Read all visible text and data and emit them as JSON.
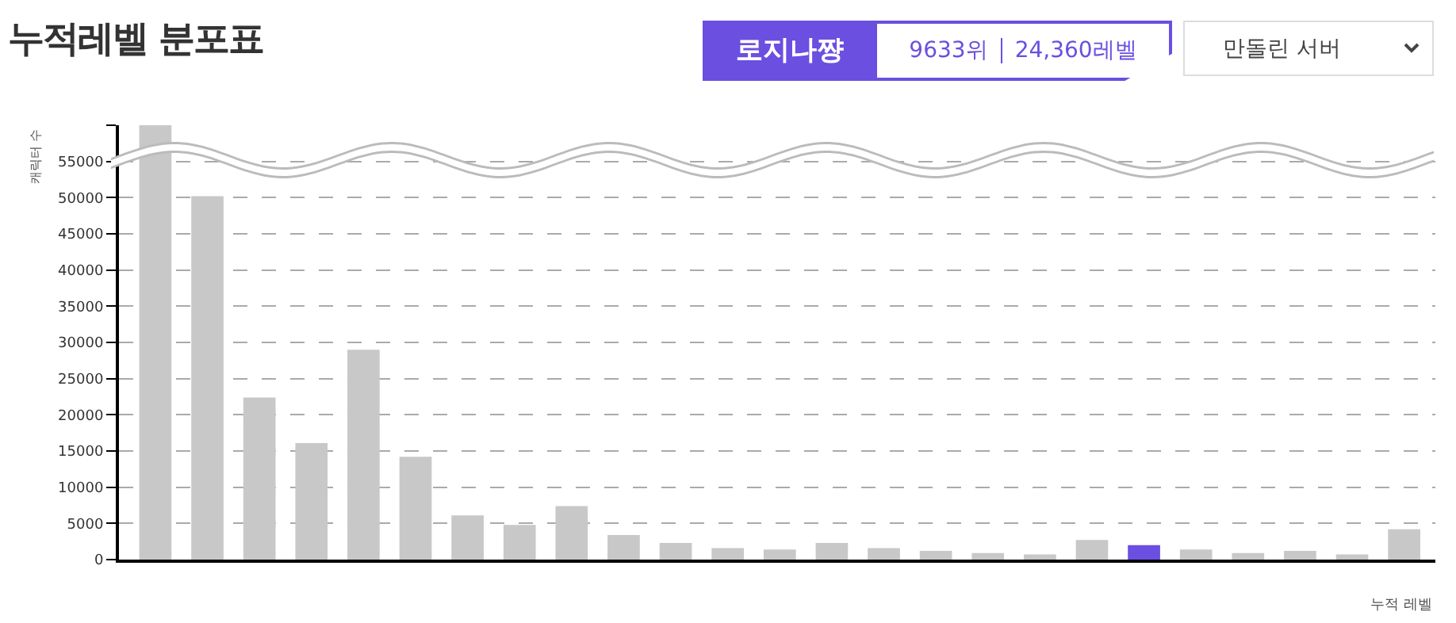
{
  "chart_data": {
    "type": "bar",
    "title": "누적레벨 분포표",
    "xlabel": "누적 레벨",
    "ylabel": "캐릭터 수",
    "annotations": [
      "로지나쨩",
      "9633위",
      "24,360레벨",
      "만돌린 서버"
    ],
    "categories": [
      null,
      null,
      null,
      null,
      null,
      null,
      null,
      null,
      null,
      null,
      null,
      null,
      null,
      null,
      null,
      null,
      null,
      null,
      null,
      null,
      null,
      null,
      null,
      null,
      null
    ],
    "values": [
      60000,
      50200,
      22400,
      16100,
      29000,
      14200,
      6100,
      4800,
      7400,
      3400,
      2300,
      1600,
      1400,
      2300,
      1600,
      1200,
      900,
      700,
      2700,
      2000,
      1400,
      900,
      1200,
      700,
      4200
    ],
    "colors": [
      "#c8c8c8",
      "#c8c8c8",
      "#c8c8c8",
      "#c8c8c8",
      "#c8c8c8",
      "#c8c8c8",
      "#c8c8c8",
      "#c8c8c8",
      "#c8c8c8",
      "#c8c8c8",
      "#c8c8c8",
      "#c8c8c8",
      "#c8c8c8",
      "#c8c8c8",
      "#c8c8c8",
      "#c8c8c8",
      "#c8c8c8",
      "#c8c8c8",
      "#c8c8c8",
      "#6b4fe0",
      "#c8c8c8",
      "#c8c8c8",
      "#c8c8c8",
      "#c8c8c8",
      "#c8c8c8"
    ],
    "ylim": [
      0,
      60000
    ],
    "yticks": [
      0,
      5000,
      10000,
      15000,
      20000,
      25000,
      30000,
      35000,
      40000,
      45000,
      50000,
      55000,
      {
        "value": 60000,
        "label": null
      }
    ],
    "grid": "y"
  }
}
